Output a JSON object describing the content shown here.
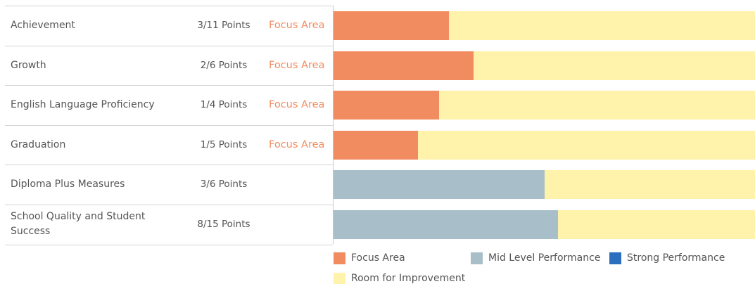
{
  "chart_data": {
    "type": "stacked-bar-horizontal",
    "categories": [
      "Achievement",
      "Growth",
      "English Language Proficiency",
      "Graduation",
      "Diploma Plus Measures",
      "School Quality and Student Success"
    ],
    "points_labels": [
      "3/11 Points",
      "2/6 Points",
      "1/4 Points",
      "1/5 Points",
      "3/6 Points",
      "8/15 Points"
    ],
    "status": [
      "Focus Area",
      "Focus Area",
      "Focus Area",
      "Focus Area",
      null,
      null
    ],
    "xlim": [
      0,
      100
    ],
    "series": [
      {
        "name": "Focus Area",
        "color": "#f08c60",
        "values": [
          27.3,
          33.3,
          25,
          20,
          null,
          null
        ]
      },
      {
        "name": "Mid Level Performance",
        "color": "#a8bfc9",
        "values": [
          null,
          null,
          null,
          null,
          50,
          53.3
        ]
      },
      {
        "name": "Strong Performance",
        "color": "#2b6fbe",
        "values": [
          null,
          null,
          null,
          null,
          null,
          null
        ]
      },
      {
        "name": "Room for Improvement",
        "color": "#fff2aa",
        "values": [
          72.7,
          66.7,
          75,
          80,
          50,
          46.7
        ]
      }
    ]
  }
}
